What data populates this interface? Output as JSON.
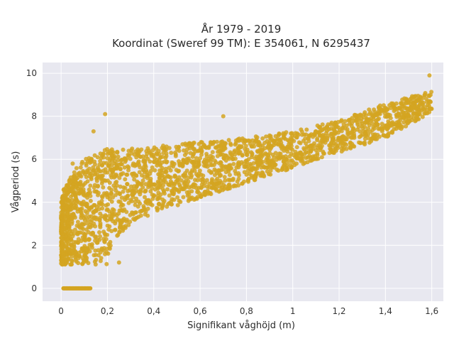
{
  "chart_data": {
    "type": "scatter",
    "title_line1": "År 1979 - 2019",
    "title_line2": "Koordinat (Sweref 99 TM): E 354061, N 6295437",
    "xlabel": "Signifikant våghöjd (m)",
    "ylabel": "Vågperiod (s)",
    "xlim": [
      -0.08,
      1.65
    ],
    "ylim": [
      -0.6,
      10.5
    ],
    "x_ticks": [
      0,
      0.2,
      0.4,
      0.6,
      0.8,
      1,
      1.2,
      1.4,
      1.6
    ],
    "x_tick_labels": [
      "0",
      "0,2",
      "0,4",
      "0,6",
      "0,8",
      "1",
      "1,2",
      "1,4",
      "1,6"
    ],
    "y_ticks": [
      0,
      2,
      4,
      6,
      8,
      10
    ],
    "y_tick_labels": [
      "0",
      "2",
      "4",
      "6",
      "8",
      "10"
    ],
    "grid": true,
    "colors": {
      "marker": "#d4a421",
      "plot_bg": "#e8e8f0",
      "grid": "#ffffff"
    },
    "cloud": {
      "x_max": 1.6,
      "upper_envelope": [
        [
          0,
          4.4
        ],
        [
          0.05,
          5.4
        ],
        [
          0.1,
          6.0
        ],
        [
          0.2,
          6.5
        ],
        [
          0.4,
          6.6
        ],
        [
          0.6,
          6.8
        ],
        [
          0.8,
          7.0
        ],
        [
          1.0,
          7.3
        ],
        [
          1.2,
          7.8
        ],
        [
          1.4,
          8.6
        ],
        [
          1.6,
          9.2
        ]
      ],
      "lower_envelope": [
        [
          0,
          1.1
        ],
        [
          0.2,
          1.1
        ],
        [
          0.22,
          2.2
        ],
        [
          0.3,
          3.0
        ],
        [
          0.4,
          3.5
        ],
        [
          0.6,
          4.2
        ],
        [
          0.8,
          4.9
        ],
        [
          1.0,
          5.6
        ],
        [
          1.2,
          6.3
        ],
        [
          1.4,
          7.0
        ],
        [
          1.6,
          8.2
        ]
      ],
      "outliers": [
        [
          0.19,
          8.1
        ],
        [
          0.7,
          8.0
        ],
        [
          1.59,
          9.9
        ],
        [
          0.05,
          5.8
        ],
        [
          0.02,
          1.6
        ],
        [
          0.25,
          1.2
        ],
        [
          0.14,
          7.3
        ],
        [
          1.57,
          9.0
        ]
      ],
      "zero_period_band": [
        [
          0.01,
          0
        ],
        [
          0.13,
          0
        ]
      ]
    }
  }
}
